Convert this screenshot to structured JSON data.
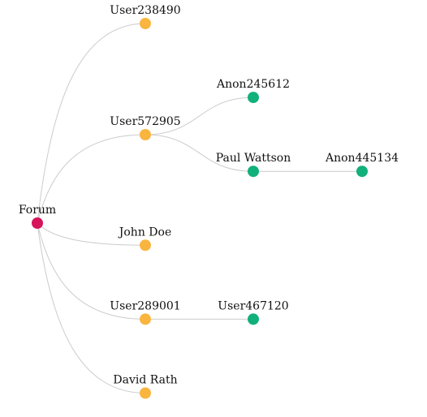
{
  "tree": {
    "colors": {
      "root": "#d6145a",
      "yellow": "#f9b53f",
      "green": "#12b07a",
      "link": "#cccccc"
    },
    "root": {
      "id": "forum",
      "label": "Forum",
      "color": "root",
      "children": [
        {
          "id": "user238490",
          "label": "User238490",
          "color": "yellow",
          "children": []
        },
        {
          "id": "user572905",
          "label": "User572905",
          "color": "yellow",
          "children": [
            {
              "id": "anon245612",
              "label": "Anon245612",
              "color": "green",
              "children": []
            },
            {
              "id": "paul-wattson",
              "label": "Paul Wattson",
              "color": "green",
              "children": [
                {
                  "id": "anon445134",
                  "label": "Anon445134",
                  "color": "green",
                  "children": []
                }
              ]
            }
          ]
        },
        {
          "id": "john-doe",
          "label": "John Doe",
          "color": "yellow",
          "children": []
        },
        {
          "id": "user289001",
          "label": "User289001",
          "color": "yellow",
          "children": [
            {
              "id": "user467120",
              "label": "User467120",
              "color": "green",
              "children": []
            }
          ]
        },
        {
          "id": "david-rath",
          "label": "David Rath",
          "color": "yellow",
          "children": []
        }
      ]
    }
  }
}
